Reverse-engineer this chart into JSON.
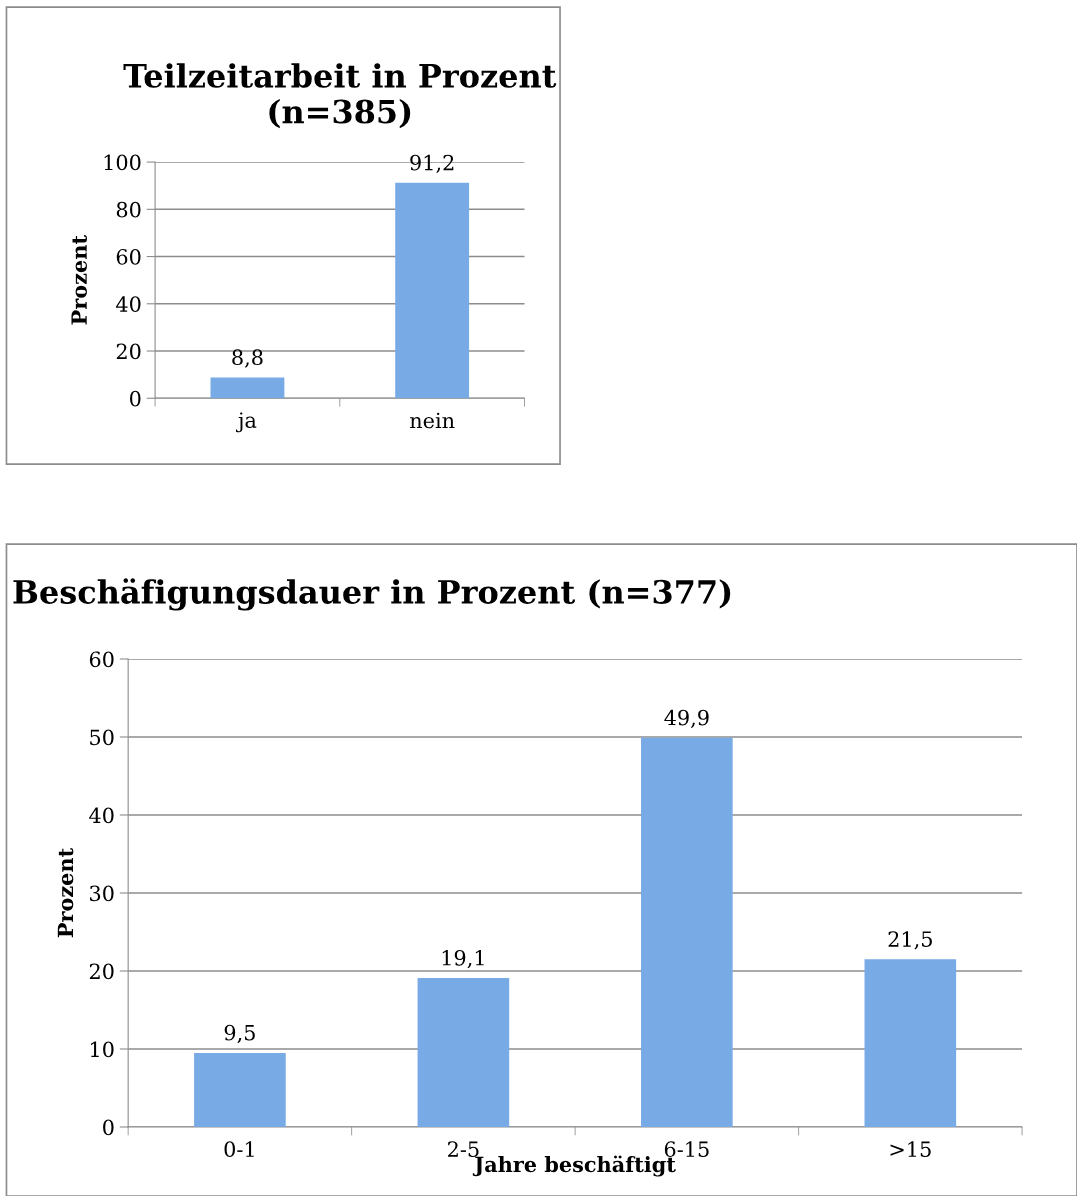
{
  "chart_data": [
    {
      "type": "bar",
      "title": "Teilzeitarbeit in Prozent\n(n=385)",
      "ylabel": "Prozent",
      "categories": [
        "ja",
        "nein"
      ],
      "values": [
        8.8,
        91.2
      ],
      "value_labels": [
        "8,8",
        "91,2"
      ],
      "color": "#78aae6",
      "ylim": [
        0,
        100
      ],
      "yticks": [
        0,
        20,
        40,
        60,
        80,
        100
      ],
      "grid": "y",
      "legend": false
    },
    {
      "type": "bar",
      "title": "Beschäfigungsdauer in Prozent (n=377)",
      "ylabel": "Prozent",
      "xlabel": "Jahre beschäftigt",
      "categories": [
        "0-1",
        "2-5",
        "6-15",
        ">15"
      ],
      "values": [
        9.5,
        19.1,
        49.9,
        21.5
      ],
      "value_labels": [
        "9,5",
        "19,1",
        "49,9",
        "21,5"
      ],
      "color": "#78aae6",
      "ylim": [
        0,
        60
      ],
      "yticks": [
        0,
        10,
        20,
        30,
        40,
        50,
        60
      ],
      "grid": "y",
      "legend": false
    }
  ]
}
